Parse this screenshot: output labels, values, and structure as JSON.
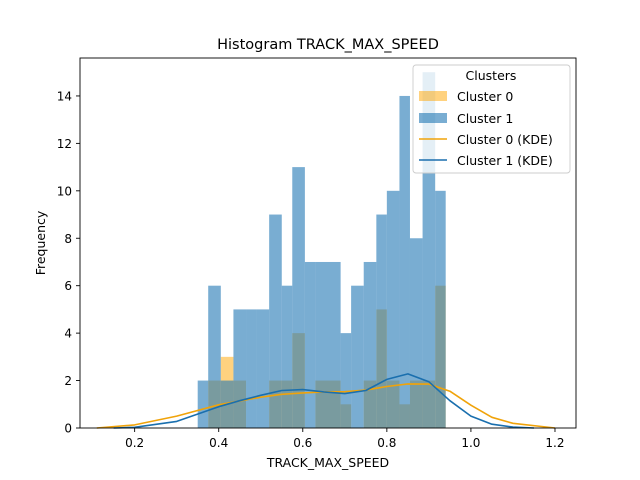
{
  "chart_data": {
    "type": "bar",
    "title": "Histogram TRACK_MAX_SPEED",
    "xlabel": "TRACK_MAX_SPEED",
    "ylabel": "Frequency",
    "xlim": [
      0.07,
      1.25
    ],
    "ylim": [
      0,
      15.6
    ],
    "xticks": [
      0.2,
      0.4,
      0.6,
      0.8,
      1.0,
      1.2
    ],
    "xtick_labels": [
      "0.2",
      "0.4",
      "0.6",
      "0.8",
      "1.0",
      "1.2"
    ],
    "yticks": [
      0,
      2,
      4,
      6,
      8,
      10,
      12,
      14
    ],
    "ytick_labels": [
      "0",
      "2",
      "4",
      "6",
      "8",
      "10",
      "12",
      "14"
    ],
    "grid": false,
    "legend": {
      "title": "Clusters",
      "placement": "top-right"
    },
    "series": [
      {
        "name": "Cluster 0",
        "kind": "histogram",
        "color": "#FFA500",
        "bins": [
          {
            "x0": 0.375,
            "x1": 0.405,
            "count": 2
          },
          {
            "x0": 0.405,
            "x1": 0.435,
            "count": 3
          },
          {
            "x0": 0.435,
            "x1": 0.465,
            "count": 2
          },
          {
            "x0": 0.52,
            "x1": 0.55,
            "count": 2
          },
          {
            "x0": 0.55,
            "x1": 0.575,
            "count": 2
          },
          {
            "x0": 0.575,
            "x1": 0.605,
            "count": 4
          },
          {
            "x0": 0.63,
            "x1": 0.66,
            "count": 2
          },
          {
            "x0": 0.66,
            "x1": 0.69,
            "count": 2
          },
          {
            "x0": 0.69,
            "x1": 0.715,
            "count": 1
          },
          {
            "x0": 0.745,
            "x1": 0.775,
            "count": 2
          },
          {
            "x0": 0.775,
            "x1": 0.8,
            "count": 5
          },
          {
            "x0": 0.8,
            "x1": 0.83,
            "count": 2
          },
          {
            "x0": 0.83,
            "x1": 0.855,
            "count": 1
          },
          {
            "x0": 0.855,
            "x1": 0.885,
            "count": 2
          },
          {
            "x0": 0.885,
            "x1": 0.915,
            "count": 2
          },
          {
            "x0": 0.915,
            "x1": 0.94,
            "count": 6
          }
        ]
      },
      {
        "name": "Cluster 1",
        "kind": "histogram",
        "color": "#1F77B4",
        "bins": [
          {
            "x0": 0.35,
            "x1": 0.375,
            "count": 2
          },
          {
            "x0": 0.375,
            "x1": 0.405,
            "count": 6
          },
          {
            "x0": 0.405,
            "x1": 0.435,
            "count": 2
          },
          {
            "x0": 0.435,
            "x1": 0.465,
            "count": 5
          },
          {
            "x0": 0.465,
            "x1": 0.49,
            "count": 5
          },
          {
            "x0": 0.49,
            "x1": 0.52,
            "count": 5
          },
          {
            "x0": 0.52,
            "x1": 0.55,
            "count": 9
          },
          {
            "x0": 0.55,
            "x1": 0.575,
            "count": 6
          },
          {
            "x0": 0.575,
            "x1": 0.605,
            "count": 11
          },
          {
            "x0": 0.605,
            "x1": 0.63,
            "count": 7
          },
          {
            "x0": 0.63,
            "x1": 0.66,
            "count": 7
          },
          {
            "x0": 0.66,
            "x1": 0.69,
            "count": 7
          },
          {
            "x0": 0.69,
            "x1": 0.715,
            "count": 4
          },
          {
            "x0": 0.715,
            "x1": 0.745,
            "count": 6
          },
          {
            "x0": 0.745,
            "x1": 0.775,
            "count": 7
          },
          {
            "x0": 0.775,
            "x1": 0.8,
            "count": 9
          },
          {
            "x0": 0.8,
            "x1": 0.83,
            "count": 10
          },
          {
            "x0": 0.83,
            "x1": 0.855,
            "count": 14
          },
          {
            "x0": 0.855,
            "x1": 0.885,
            "count": 8
          },
          {
            "x0": 0.885,
            "x1": 0.915,
            "count": 15
          },
          {
            "x0": 0.915,
            "x1": 0.94,
            "count": 10
          }
        ]
      },
      {
        "name": "Cluster 0 (KDE)",
        "kind": "line",
        "color": "#F0A30A",
        "x": [
          0.11,
          0.2,
          0.3,
          0.4,
          0.5,
          0.55,
          0.6,
          0.65,
          0.7,
          0.75,
          0.8,
          0.85,
          0.9,
          0.95,
          1.0,
          1.05,
          1.1,
          1.2
        ],
        "y": [
          0.0,
          0.13,
          0.5,
          0.98,
          1.3,
          1.42,
          1.48,
          1.52,
          1.53,
          1.6,
          1.75,
          1.86,
          1.85,
          1.55,
          0.96,
          0.45,
          0.2,
          0.0
        ]
      },
      {
        "name": "Cluster 1 (KDE)",
        "kind": "line",
        "color": "#1A6FAE",
        "x": [
          0.15,
          0.2,
          0.3,
          0.4,
          0.45,
          0.5,
          0.55,
          0.6,
          0.65,
          0.7,
          0.75,
          0.8,
          0.85,
          0.9,
          0.95,
          1.0,
          1.05,
          1.1,
          1.15
        ],
        "y": [
          0.0,
          0.03,
          0.28,
          0.9,
          1.15,
          1.38,
          1.58,
          1.62,
          1.52,
          1.45,
          1.58,
          2.05,
          2.28,
          1.95,
          1.15,
          0.5,
          0.16,
          0.04,
          0.0
        ]
      }
    ]
  }
}
